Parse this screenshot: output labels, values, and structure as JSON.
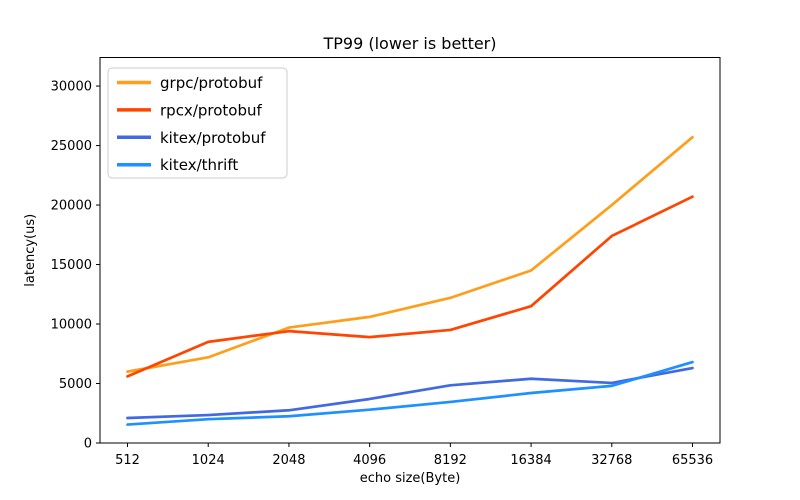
{
  "figure": {
    "background": "#ffffff",
    "text_color": "#000000",
    "spine_color": "#000000",
    "legend_border_color": "#cccccc"
  },
  "chart_data": {
    "type": "line",
    "title": "TP99 (lower is better)",
    "xlabel": "echo size(Byte)",
    "ylabel": "latency(us)",
    "categories": [
      "512",
      "1024",
      "2048",
      "4096",
      "8192",
      "16384",
      "32768",
      "65536"
    ],
    "series": [
      {
        "name": "grpc/protobuf",
        "color": "#FF9E1B",
        "values": [
          6000,
          7200,
          9700,
          10600,
          12200,
          14500,
          20000,
          25700
        ]
      },
      {
        "name": "rpcx/protobuf",
        "color": "#FF4500",
        "values": [
          5600,
          8500,
          9400,
          8900,
          9500,
          11500,
          17400,
          20700
        ]
      },
      {
        "name": "kitex/protobuf",
        "color": "#4169E1",
        "values": [
          2100,
          2350,
          2750,
          3700,
          4850,
          5400,
          5050,
          6300
        ]
      },
      {
        "name": "kitex/thrift",
        "color": "#1E90FF",
        "values": [
          1550,
          2000,
          2250,
          2800,
          3450,
          4200,
          4800,
          6800
        ]
      }
    ],
    "yticks": [
      0,
      5000,
      10000,
      15000,
      20000,
      25000,
      30000
    ],
    "ylim": [
      0,
      32400
    ],
    "grid": false,
    "legend_position": "upper-left"
  }
}
